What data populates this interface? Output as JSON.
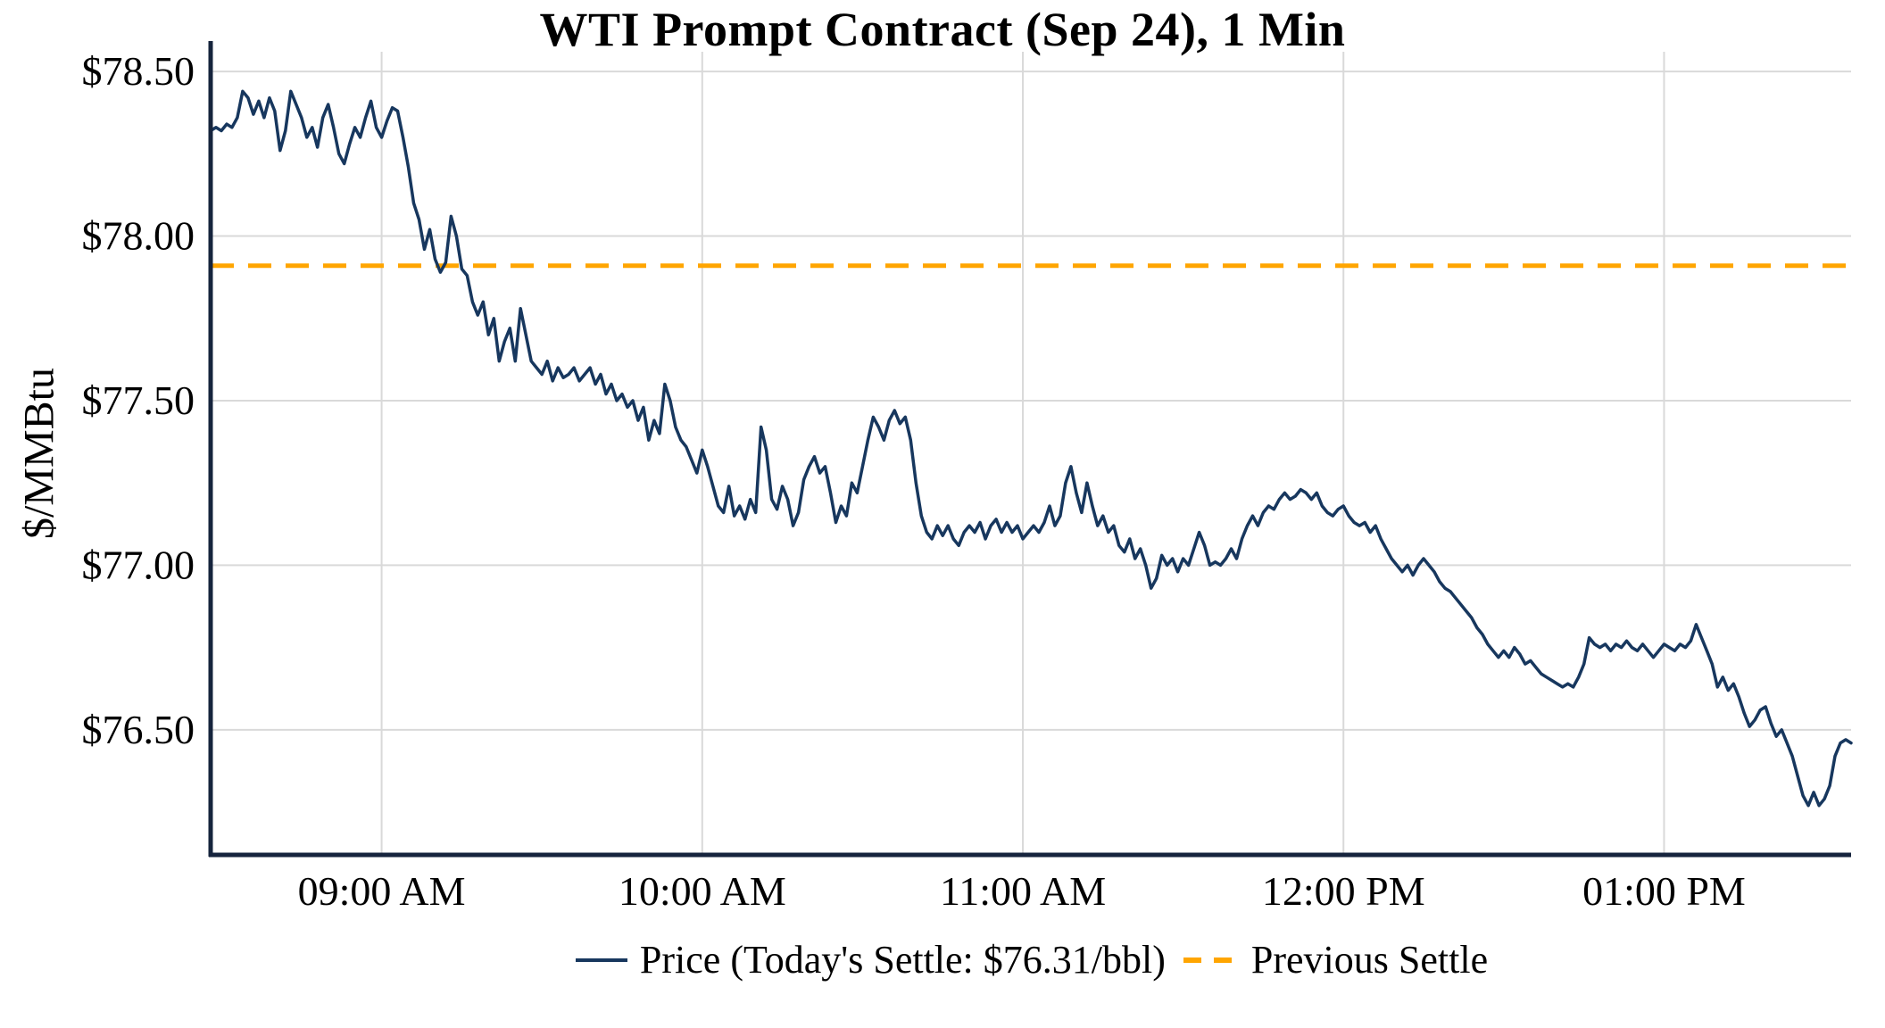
{
  "colors": {
    "price": "#17375e",
    "previous_settle": "#ffa500",
    "axis": "#16243d",
    "grid": "#d9d9d9",
    "text": "#000000",
    "background": "#ffffff"
  },
  "chart_data": {
    "type": "line",
    "title": "WTI Prompt Contract (Sep 24), 1 Min",
    "xlabel": "",
    "ylabel": "$/MMBtu",
    "grid": true,
    "legend_position": "bottom",
    "x_domain_minutes": [
      508,
      815
    ],
    "y_domain": [
      76.12,
      78.56
    ],
    "x_ticks": [
      {
        "minute": 540,
        "label": "09:00 AM"
      },
      {
        "minute": 600,
        "label": "10:00 AM"
      },
      {
        "minute": 660,
        "label": "11:00 AM"
      },
      {
        "minute": 720,
        "label": "12:00 PM"
      },
      {
        "minute": 780,
        "label": "01:00 PM"
      }
    ],
    "y_ticks": [
      {
        "value": 78.5,
        "label": "$78.50"
      },
      {
        "value": 78.0,
        "label": "$78.00"
      },
      {
        "value": 77.5,
        "label": "$77.50"
      },
      {
        "value": 77.0,
        "label": "$77.00"
      },
      {
        "value": 76.5,
        "label": "$76.50"
      }
    ],
    "previous_settle": 77.91,
    "today_settle": 76.31,
    "legend": {
      "price_label": "Price (Today's Settle: $76.31/bbl)",
      "previous_settle_label": "Previous Settle"
    },
    "series": [
      {
        "name": "Price",
        "points": [
          [
            508,
            78.32
          ],
          [
            509,
            78.33
          ],
          [
            510,
            78.32
          ],
          [
            511,
            78.34
          ],
          [
            512,
            78.33
          ],
          [
            513,
            78.36
          ],
          [
            514,
            78.44
          ],
          [
            515,
            78.42
          ],
          [
            516,
            78.37
          ],
          [
            517,
            78.41
          ],
          [
            518,
            78.36
          ],
          [
            519,
            78.42
          ],
          [
            520,
            78.38
          ],
          [
            521,
            78.26
          ],
          [
            522,
            78.32
          ],
          [
            523,
            78.44
          ],
          [
            524,
            78.4
          ],
          [
            525,
            78.36
          ],
          [
            526,
            78.3
          ],
          [
            527,
            78.33
          ],
          [
            528,
            78.27
          ],
          [
            529,
            78.36
          ],
          [
            530,
            78.4
          ],
          [
            531,
            78.33
          ],
          [
            532,
            78.25
          ],
          [
            533,
            78.22
          ],
          [
            534,
            78.28
          ],
          [
            535,
            78.33
          ],
          [
            536,
            78.3
          ],
          [
            537,
            78.36
          ],
          [
            538,
            78.41
          ],
          [
            539,
            78.33
          ],
          [
            540,
            78.3
          ],
          [
            541,
            78.35
          ],
          [
            542,
            78.39
          ],
          [
            543,
            78.38
          ],
          [
            544,
            78.3
          ],
          [
            545,
            78.21
          ],
          [
            546,
            78.1
          ],
          [
            547,
            78.05
          ],
          [
            548,
            77.96
          ],
          [
            549,
            78.02
          ],
          [
            550,
            77.93
          ],
          [
            551,
            77.89
          ],
          [
            552,
            77.92
          ],
          [
            553,
            78.06
          ],
          [
            554,
            78.0
          ],
          [
            555,
            77.9
          ],
          [
            556,
            77.88
          ],
          [
            557,
            77.8
          ],
          [
            558,
            77.76
          ],
          [
            559,
            77.8
          ],
          [
            560,
            77.7
          ],
          [
            561,
            77.75
          ],
          [
            562,
            77.62
          ],
          [
            563,
            77.68
          ],
          [
            564,
            77.72
          ],
          [
            565,
            77.62
          ],
          [
            566,
            77.78
          ],
          [
            567,
            77.7
          ],
          [
            568,
            77.62
          ],
          [
            569,
            77.6
          ],
          [
            570,
            77.58
          ],
          [
            571,
            77.62
          ],
          [
            572,
            77.56
          ],
          [
            573,
            77.6
          ],
          [
            574,
            77.57
          ],
          [
            575,
            77.58
          ],
          [
            576,
            77.6
          ],
          [
            577,
            77.56
          ],
          [
            578,
            77.58
          ],
          [
            579,
            77.6
          ],
          [
            580,
            77.55
          ],
          [
            581,
            77.58
          ],
          [
            582,
            77.52
          ],
          [
            583,
            77.55
          ],
          [
            584,
            77.5
          ],
          [
            585,
            77.52
          ],
          [
            586,
            77.48
          ],
          [
            587,
            77.5
          ],
          [
            588,
            77.44
          ],
          [
            589,
            77.48
          ],
          [
            590,
            77.38
          ],
          [
            591,
            77.44
          ],
          [
            592,
            77.4
          ],
          [
            593,
            77.55
          ],
          [
            594,
            77.5
          ],
          [
            595,
            77.42
          ],
          [
            596,
            77.38
          ],
          [
            597,
            77.36
          ],
          [
            598,
            77.32
          ],
          [
            599,
            77.28
          ],
          [
            600,
            77.35
          ],
          [
            601,
            77.3
          ],
          [
            602,
            77.24
          ],
          [
            603,
            77.18
          ],
          [
            604,
            77.16
          ],
          [
            605,
            77.24
          ],
          [
            606,
            77.15
          ],
          [
            607,
            77.18
          ],
          [
            608,
            77.14
          ],
          [
            609,
            77.2
          ],
          [
            610,
            77.16
          ],
          [
            611,
            77.42
          ],
          [
            612,
            77.35
          ],
          [
            613,
            77.2
          ],
          [
            614,
            77.17
          ],
          [
            615,
            77.24
          ],
          [
            616,
            77.2
          ],
          [
            617,
            77.12
          ],
          [
            618,
            77.16
          ],
          [
            619,
            77.26
          ],
          [
            620,
            77.3
          ],
          [
            621,
            77.33
          ],
          [
            622,
            77.28
          ],
          [
            623,
            77.3
          ],
          [
            624,
            77.22
          ],
          [
            625,
            77.13
          ],
          [
            626,
            77.18
          ],
          [
            627,
            77.15
          ],
          [
            628,
            77.25
          ],
          [
            629,
            77.22
          ],
          [
            630,
            77.3
          ],
          [
            631,
            77.38
          ],
          [
            632,
            77.45
          ],
          [
            633,
            77.42
          ],
          [
            634,
            77.38
          ],
          [
            635,
            77.44
          ],
          [
            636,
            77.47
          ],
          [
            637,
            77.43
          ],
          [
            638,
            77.45
          ],
          [
            639,
            77.38
          ],
          [
            640,
            77.25
          ],
          [
            641,
            77.15
          ],
          [
            642,
            77.1
          ],
          [
            643,
            77.08
          ],
          [
            644,
            77.12
          ],
          [
            645,
            77.09
          ],
          [
            646,
            77.12
          ],
          [
            647,
            77.08
          ],
          [
            648,
            77.06
          ],
          [
            649,
            77.1
          ],
          [
            650,
            77.12
          ],
          [
            651,
            77.1
          ],
          [
            652,
            77.13
          ],
          [
            653,
            77.08
          ],
          [
            654,
            77.12
          ],
          [
            655,
            77.14
          ],
          [
            656,
            77.1
          ],
          [
            657,
            77.13
          ],
          [
            658,
            77.1
          ],
          [
            659,
            77.12
          ],
          [
            660,
            77.08
          ],
          [
            661,
            77.1
          ],
          [
            662,
            77.12
          ],
          [
            663,
            77.1
          ],
          [
            664,
            77.13
          ],
          [
            665,
            77.18
          ],
          [
            666,
            77.12
          ],
          [
            667,
            77.15
          ],
          [
            668,
            77.25
          ],
          [
            669,
            77.3
          ],
          [
            670,
            77.22
          ],
          [
            671,
            77.16
          ],
          [
            672,
            77.25
          ],
          [
            673,
            77.18
          ],
          [
            674,
            77.12
          ],
          [
            675,
            77.15
          ],
          [
            676,
            77.1
          ],
          [
            677,
            77.12
          ],
          [
            678,
            77.06
          ],
          [
            679,
            77.04
          ],
          [
            680,
            77.08
          ],
          [
            681,
            77.02
          ],
          [
            682,
            77.05
          ],
          [
            683,
            77.0
          ],
          [
            684,
            76.93
          ],
          [
            685,
            76.96
          ],
          [
            686,
            77.03
          ],
          [
            687,
            77.0
          ],
          [
            688,
            77.02
          ],
          [
            689,
            76.98
          ],
          [
            690,
            77.02
          ],
          [
            691,
            77.0
          ],
          [
            692,
            77.05
          ],
          [
            693,
            77.1
          ],
          [
            694,
            77.06
          ],
          [
            695,
            77.0
          ],
          [
            696,
            77.01
          ],
          [
            697,
            77.0
          ],
          [
            698,
            77.02
          ],
          [
            699,
            77.05
          ],
          [
            700,
            77.02
          ],
          [
            701,
            77.08
          ],
          [
            702,
            77.12
          ],
          [
            703,
            77.15
          ],
          [
            704,
            77.12
          ],
          [
            705,
            77.16
          ],
          [
            706,
            77.18
          ],
          [
            707,
            77.17
          ],
          [
            708,
            77.2
          ],
          [
            709,
            77.22
          ],
          [
            710,
            77.2
          ],
          [
            711,
            77.21
          ],
          [
            712,
            77.23
          ],
          [
            713,
            77.22
          ],
          [
            714,
            77.2
          ],
          [
            715,
            77.22
          ],
          [
            716,
            77.18
          ],
          [
            717,
            77.16
          ],
          [
            718,
            77.15
          ],
          [
            719,
            77.17
          ],
          [
            720,
            77.18
          ],
          [
            721,
            77.15
          ],
          [
            722,
            77.13
          ],
          [
            723,
            77.12
          ],
          [
            724,
            77.13
          ],
          [
            725,
            77.1
          ],
          [
            726,
            77.12
          ],
          [
            727,
            77.08
          ],
          [
            728,
            77.05
          ],
          [
            729,
            77.02
          ],
          [
            730,
            77.0
          ],
          [
            731,
            76.98
          ],
          [
            732,
            77.0
          ],
          [
            733,
            76.97
          ],
          [
            734,
            77.0
          ],
          [
            735,
            77.02
          ],
          [
            736,
            77.0
          ],
          [
            737,
            76.98
          ],
          [
            738,
            76.95
          ],
          [
            739,
            76.93
          ],
          [
            740,
            76.92
          ],
          [
            741,
            76.9
          ],
          [
            742,
            76.88
          ],
          [
            743,
            76.86
          ],
          [
            744,
            76.84
          ],
          [
            745,
            76.81
          ],
          [
            746,
            76.79
          ],
          [
            747,
            76.76
          ],
          [
            748,
            76.74
          ],
          [
            749,
            76.72
          ],
          [
            750,
            76.74
          ],
          [
            751,
            76.72
          ],
          [
            752,
            76.75
          ],
          [
            753,
            76.73
          ],
          [
            754,
            76.7
          ],
          [
            755,
            76.71
          ],
          [
            756,
            76.69
          ],
          [
            757,
            76.67
          ],
          [
            758,
            76.66
          ],
          [
            759,
            76.65
          ],
          [
            760,
            76.64
          ],
          [
            761,
            76.63
          ],
          [
            762,
            76.64
          ],
          [
            763,
            76.63
          ],
          [
            764,
            76.66
          ],
          [
            765,
            76.7
          ],
          [
            766,
            76.78
          ],
          [
            767,
            76.76
          ],
          [
            768,
            76.75
          ],
          [
            769,
            76.76
          ],
          [
            770,
            76.74
          ],
          [
            771,
            76.76
          ],
          [
            772,
            76.75
          ],
          [
            773,
            76.77
          ],
          [
            774,
            76.75
          ],
          [
            775,
            76.74
          ],
          [
            776,
            76.76
          ],
          [
            777,
            76.74
          ],
          [
            778,
            76.72
          ],
          [
            779,
            76.74
          ],
          [
            780,
            76.76
          ],
          [
            781,
            76.75
          ],
          [
            782,
            76.74
          ],
          [
            783,
            76.76
          ],
          [
            784,
            76.75
          ],
          [
            785,
            76.77
          ],
          [
            786,
            76.82
          ],
          [
            787,
            76.78
          ],
          [
            788,
            76.74
          ],
          [
            789,
            76.7
          ],
          [
            790,
            76.63
          ],
          [
            791,
            76.66
          ],
          [
            792,
            76.62
          ],
          [
            793,
            76.64
          ],
          [
            794,
            76.6
          ],
          [
            795,
            76.55
          ],
          [
            796,
            76.51
          ],
          [
            797,
            76.53
          ],
          [
            798,
            76.56
          ],
          [
            799,
            76.57
          ],
          [
            800,
            76.52
          ],
          [
            801,
            76.48
          ],
          [
            802,
            76.5
          ],
          [
            803,
            76.46
          ],
          [
            804,
            76.42
          ],
          [
            805,
            76.36
          ],
          [
            806,
            76.3
          ],
          [
            807,
            76.27
          ],
          [
            808,
            76.31
          ],
          [
            809,
            76.27
          ],
          [
            810,
            76.29
          ],
          [
            811,
            76.33
          ],
          [
            812,
            76.42
          ],
          [
            813,
            76.46
          ],
          [
            814,
            76.47
          ],
          [
            815,
            76.46
          ]
        ]
      }
    ]
  }
}
